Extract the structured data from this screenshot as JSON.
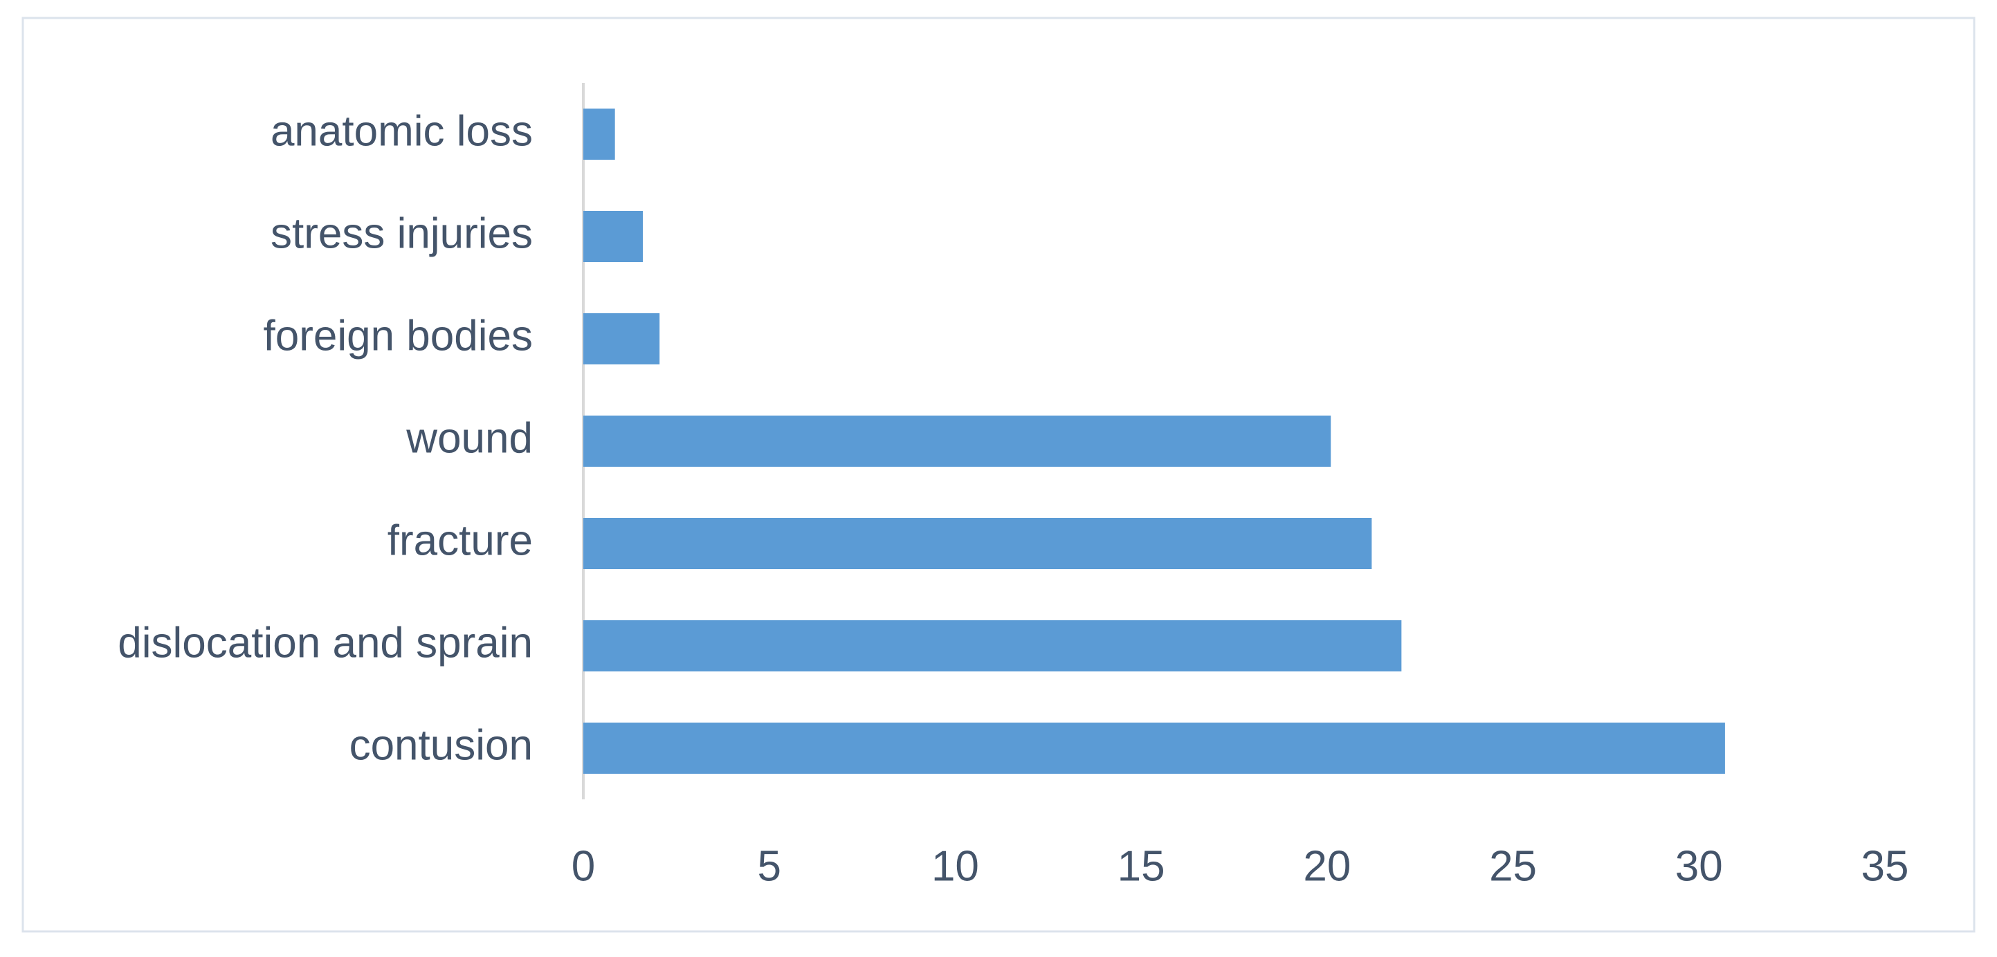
{
  "chart_data": {
    "type": "barh",
    "categories": [
      "anatomic loss",
      "stress injuries",
      "foreign bodies",
      "wound",
      "fracture",
      "dislocation and sprain",
      "contusion"
    ],
    "values": [
      0.85,
      1.6,
      2.05,
      20.1,
      21.2,
      22.0,
      30.7
    ],
    "color": "#5b9bd5",
    "xlim": [
      0,
      35
    ],
    "xticks": [
      0,
      5,
      10,
      15,
      20,
      25,
      30,
      35
    ]
  }
}
